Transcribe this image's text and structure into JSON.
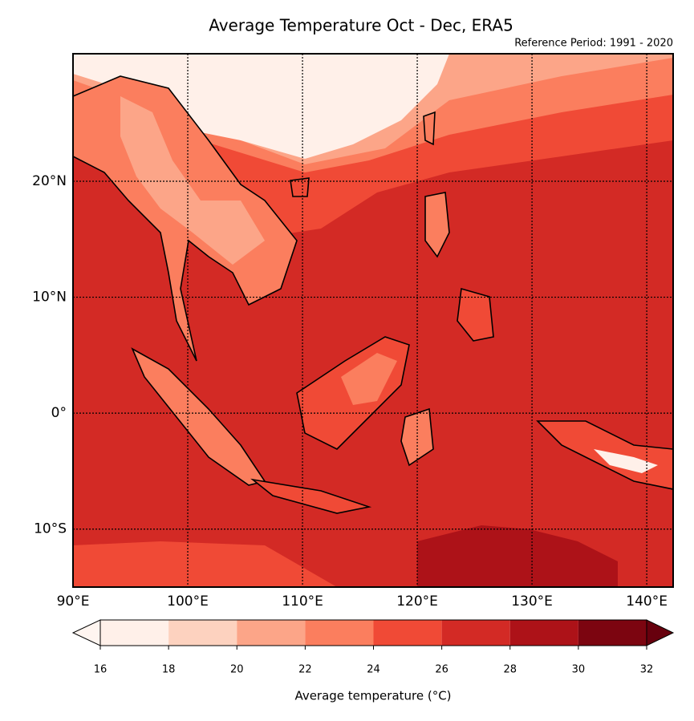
{
  "chart_data": {
    "type": "map",
    "title": "Average Temperature Oct - Dec, ERA5",
    "subtitle": "Reference Period: 1991 - 2020",
    "xlim": [
      90,
      142.3
    ],
    "ylim": [
      -15,
      31
    ],
    "xticks": [
      {
        "value": 90,
        "label": "90°E"
      },
      {
        "value": 100,
        "label": "100°E"
      },
      {
        "value": 110,
        "label": "110°E"
      },
      {
        "value": 120,
        "label": "120°E"
      },
      {
        "value": 130,
        "label": "130°E"
      },
      {
        "value": 140,
        "label": "140°E"
      }
    ],
    "yticks": [
      {
        "value": -10,
        "label": "10°S"
      },
      {
        "value": 0,
        "label": "0°"
      },
      {
        "value": 10,
        "label": "10°N"
      },
      {
        "value": 20,
        "label": "20°N"
      }
    ],
    "grid": true,
    "colorbar": {
      "label": "Average temperature (°C)",
      "levels": [
        16,
        18,
        20,
        22,
        24,
        26,
        28,
        30,
        32
      ],
      "colors": [
        "#fff0e9",
        "#fdd2bf",
        "#fca588",
        "#fb7e5e",
        "#f04a36",
        "#d32a25",
        "#ad1218",
        "#7c0510"
      ],
      "extend_colors": [
        "#fff5f0",
        "#67000d"
      ]
    }
  }
}
